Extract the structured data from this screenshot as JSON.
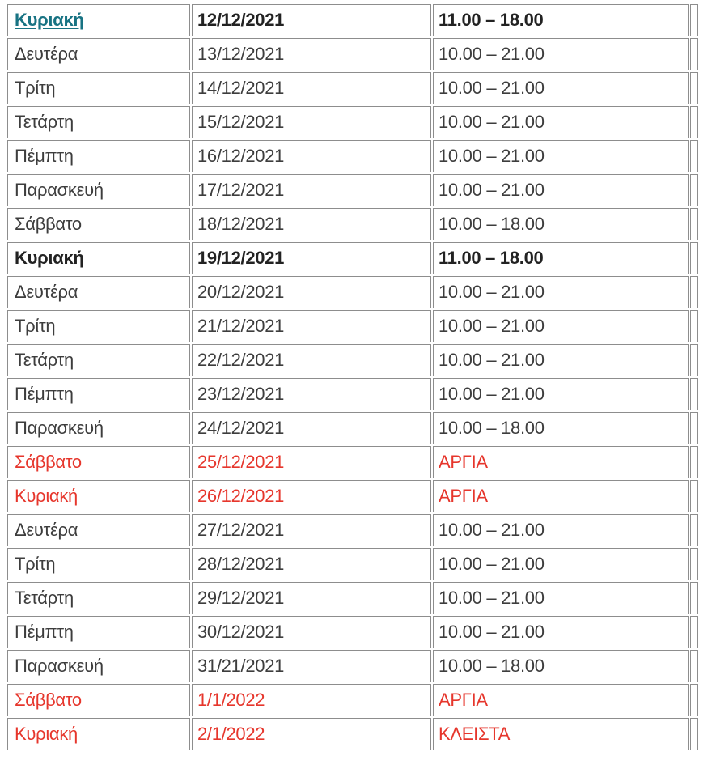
{
  "table": {
    "name": "opening-hours-schedule",
    "columns": [
      "day",
      "date",
      "hours"
    ],
    "colors": {
      "link": "#187383",
      "holiday": "#e6362c",
      "border": "#8d8d8d",
      "text": "#3d3d3d"
    },
    "rows": [
      {
        "day": "Κυριακή",
        "date": "12/12/2021",
        "hours": "11.00 – 18.00",
        "style": "link"
      },
      {
        "day": "Δευτέρα",
        "date": "13/12/2021",
        "hours": "10.00 – 21.00",
        "style": "normal"
      },
      {
        "day": "Τρίτη",
        "date": "14/12/2021",
        "hours": "10.00 – 21.00",
        "style": "normal"
      },
      {
        "day": "Τετάρτη",
        "date": "15/12/2021",
        "hours": "10.00 – 21.00",
        "style": "normal"
      },
      {
        "day": "Πέμπτη",
        "date": "16/12/2021",
        "hours": "10.00 – 21.00",
        "style": "normal"
      },
      {
        "day": "Παρασκευή",
        "date": "17/12/2021",
        "hours": "10.00 – 21.00",
        "style": "normal"
      },
      {
        "day": "Σάββατο",
        "date": "18/12/2021",
        "hours": "10.00 – 18.00",
        "style": "normal"
      },
      {
        "day": "Κυριακή",
        "date": "19/12/2021",
        "hours": "11.00 – 18.00",
        "style": "bold"
      },
      {
        "day": "Δευτέρα",
        "date": "20/12/2021",
        "hours": "10.00 – 21.00",
        "style": "normal"
      },
      {
        "day": "Τρίτη",
        "date": "21/12/2021",
        "hours": "10.00 – 21.00",
        "style": "normal"
      },
      {
        "day": "Τετάρτη",
        "date": "22/12/2021",
        "hours": "10.00 – 21.00",
        "style": "normal"
      },
      {
        "day": "Πέμπτη",
        "date": "23/12/2021",
        "hours": "10.00 – 21.00",
        "style": "normal"
      },
      {
        "day": "Παρασκευή",
        "date": "24/12/2021",
        "hours": "10.00 – 18.00",
        "style": "normal"
      },
      {
        "day": "Σάββατο",
        "date": "25/12/2021",
        "hours": "ΑΡΓΙΑ",
        "style": "holiday"
      },
      {
        "day": "Κυριακή",
        "date": "26/12/2021",
        "hours": "ΑΡΓΙΑ",
        "style": "holiday"
      },
      {
        "day": "Δευτέρα",
        "date": "27/12/2021",
        "hours": "10.00 – 21.00",
        "style": "normal"
      },
      {
        "day": "Τρίτη",
        "date": "28/12/2021",
        "hours": "10.00 – 21.00",
        "style": "normal"
      },
      {
        "day": "Τετάρτη",
        "date": "29/12/2021",
        "hours": "10.00 – 21.00",
        "style": "normal"
      },
      {
        "day": "Πέμπτη",
        "date": "30/12/2021",
        "hours": "10.00 – 21.00",
        "style": "normal"
      },
      {
        "day": "Παρασκευή",
        "date": "31/21/2021",
        "hours": "10.00 – 18.00",
        "style": "normal"
      },
      {
        "day": "Σάββατο",
        "date": "1/1/2022",
        "hours": "ΑΡΓΙΑ",
        "style": "holiday"
      },
      {
        "day": "Κυριακή",
        "date": "2/1/2022",
        "hours": "ΚΛΕΙΣΤΑ",
        "style": "holiday"
      }
    ]
  }
}
